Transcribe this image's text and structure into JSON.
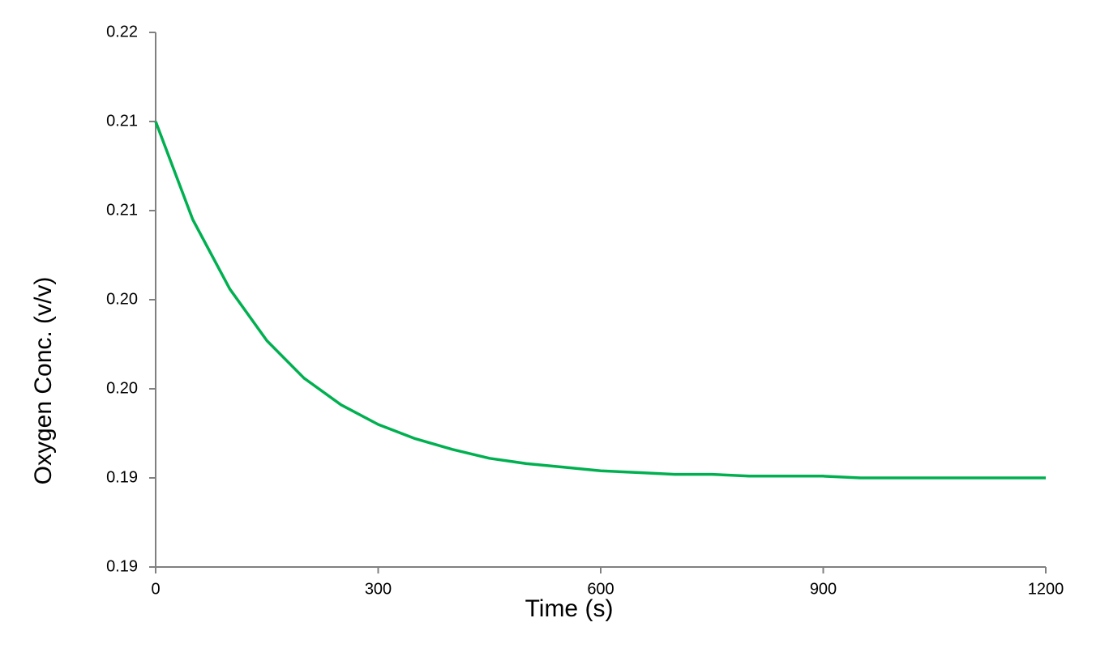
{
  "chart_data": {
    "type": "line",
    "xlabel": "Time (s)",
    "ylabel": "Oxygen Conc. (v/v)",
    "x": [
      0,
      50,
      100,
      150,
      200,
      250,
      300,
      350,
      400,
      450,
      500,
      550,
      600,
      650,
      700,
      750,
      800,
      850,
      900,
      950,
      1000,
      1050,
      1100,
      1150,
      1200
    ],
    "series": [
      {
        "name": "Oxygen",
        "color": "#00b050",
        "values": [
          0.21,
          0.2045,
          0.2006,
          0.1977,
          0.1956,
          0.1941,
          0.193,
          0.1922,
          0.1916,
          0.1911,
          0.1908,
          0.1906,
          0.1904,
          0.1903,
          0.1902,
          0.1902,
          0.1901,
          0.1901,
          0.1901,
          0.19,
          0.19,
          0.19,
          0.19,
          0.19,
          0.19
        ]
      }
    ],
    "xlim": [
      0,
      1200
    ],
    "xticks": [
      0,
      300,
      600,
      900,
      1200
    ],
    "ylim": [
      0.185,
      0.215
    ],
    "yticks": [
      {
        "value": 0.185,
        "label": "0.19"
      },
      {
        "value": 0.19,
        "label": "0.19"
      },
      {
        "value": 0.195,
        "label": "0.20"
      },
      {
        "value": 0.2,
        "label": "0.20"
      },
      {
        "value": 0.205,
        "label": "0.21"
      },
      {
        "value": 0.21,
        "label": "0.21"
      },
      {
        "value": 0.215,
        "label": "0.22"
      }
    ],
    "grid": false
  }
}
